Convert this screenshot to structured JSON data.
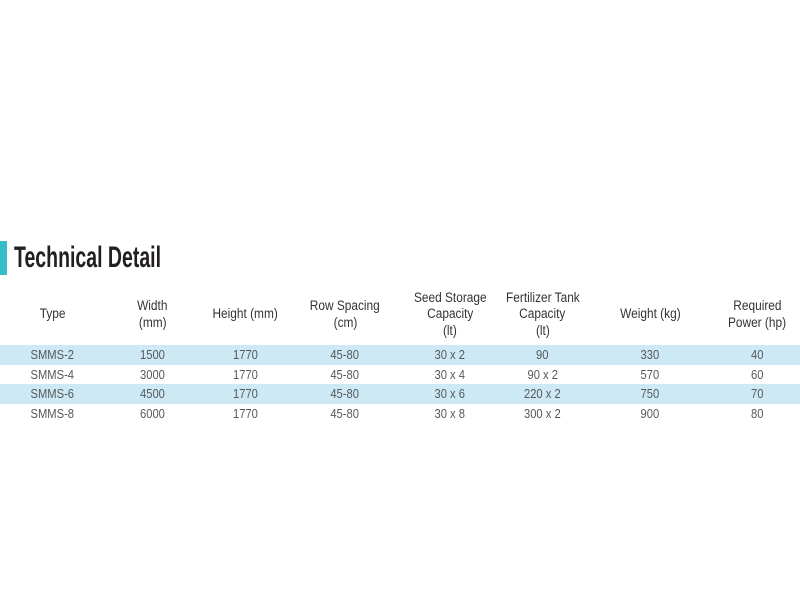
{
  "page": {
    "background": "#ffffff"
  },
  "section": {
    "title": "Technical Detail",
    "accent_color": "#35bdc7"
  },
  "table": {
    "highlight_color": "#cde9f5",
    "columns": [
      {
        "id": "type",
        "label_lines": [
          "Type"
        ]
      },
      {
        "id": "width",
        "label_lines": [
          "Width",
          "(mm)"
        ]
      },
      {
        "id": "height",
        "label_lines": [
          "Height (mm)"
        ]
      },
      {
        "id": "row_spacing",
        "label_lines": [
          "Row Spacing",
          "(cm)"
        ]
      },
      {
        "id": "seed_storage",
        "label_lines": [
          "Seed Storage",
          "Capacity",
          "(lt)"
        ]
      },
      {
        "id": "fertilizer_tank",
        "label_lines": [
          "Fertilizer Tank",
          "Capacity",
          "(lt)"
        ]
      },
      {
        "id": "weight",
        "label_lines": [
          "Weight (kg)"
        ]
      },
      {
        "id": "required_power",
        "label_lines": [
          "Required",
          "Power (hp)"
        ]
      }
    ],
    "rows": [
      {
        "highlighted": true,
        "cells": [
          "SMMS-2",
          "1500",
          "1770",
          "45-80",
          "30 x 2",
          "90",
          "330",
          "40"
        ]
      },
      {
        "highlighted": false,
        "cells": [
          "SMMS-4",
          "3000",
          "1770",
          "45-80",
          "30 x 4",
          "90 x 2",
          "570",
          "60"
        ]
      },
      {
        "highlighted": true,
        "cells": [
          "SMMS-6",
          "4500",
          "1770",
          "45-80",
          "30 x 6",
          "220 x 2",
          "750",
          "70"
        ]
      },
      {
        "highlighted": false,
        "cells": [
          "SMMS-8",
          "6000",
          "1770",
          "45-80",
          "30 x 8",
          "300 x 2",
          "900",
          "80"
        ]
      }
    ]
  }
}
